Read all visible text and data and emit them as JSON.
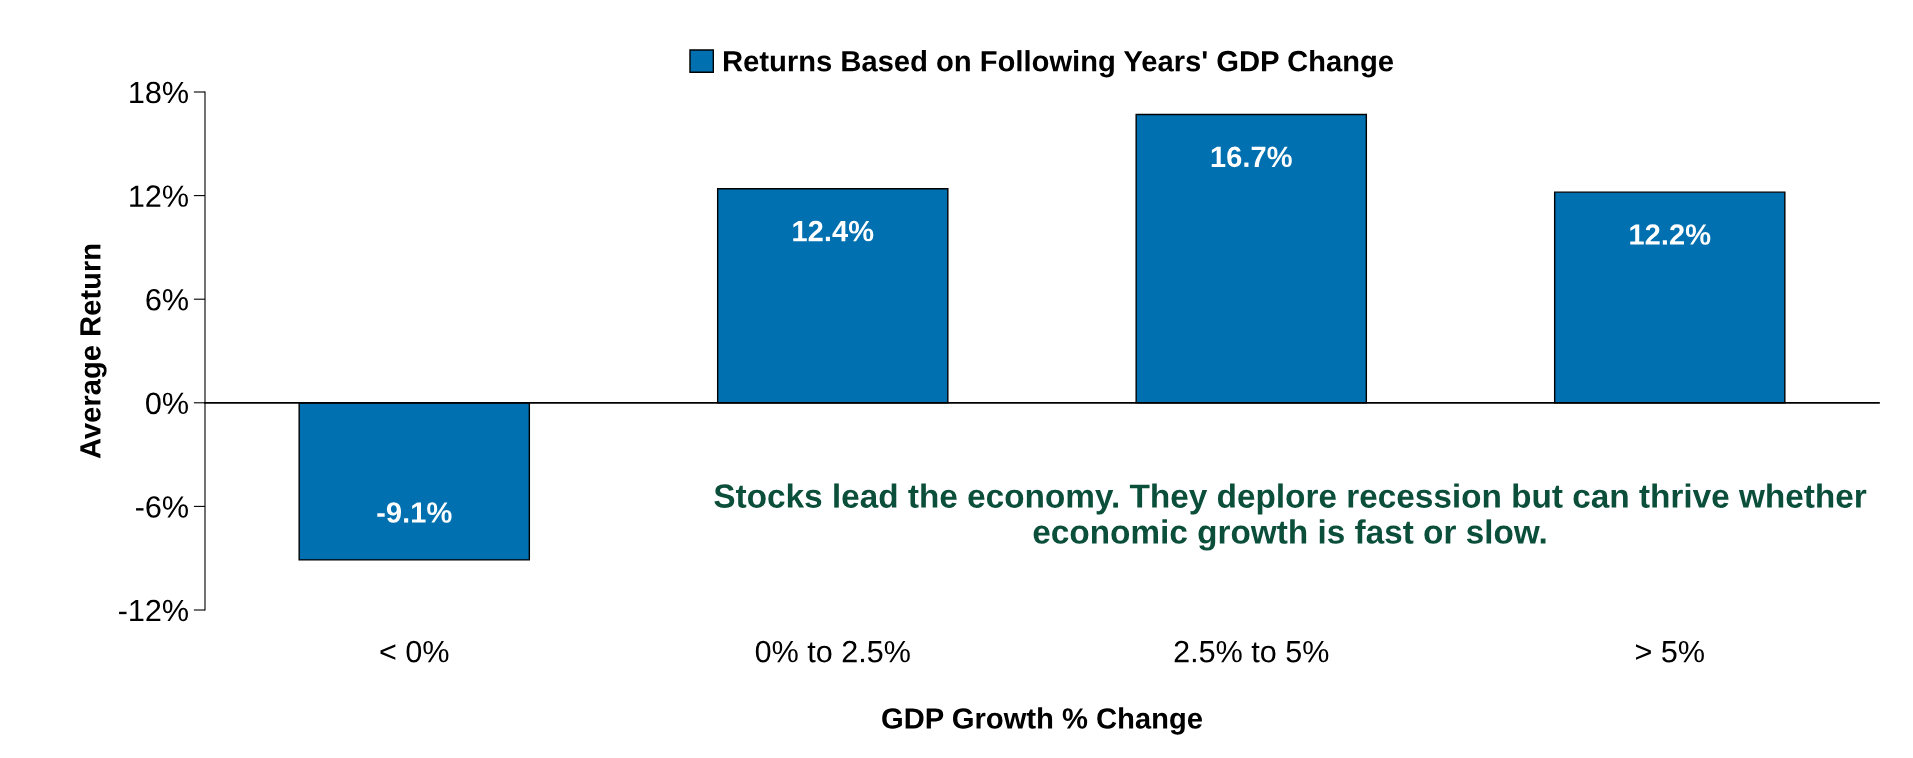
{
  "chart_data": {
    "type": "bar",
    "categories": [
      "< 0%",
      "0% to 2.5%",
      "2.5% to 5%",
      "> 5%"
    ],
    "series": [
      {
        "name": "Returns Based on Following Years' GDP Change",
        "color": "#0070b0",
        "values": [
          -9.1,
          12.4,
          16.7,
          12.2
        ],
        "value_labels": [
          "-9.1%",
          "12.4%",
          "16.7%",
          "12.2%"
        ]
      }
    ],
    "xlabel": "GDP Growth % Change",
    "ylabel": "Average Return",
    "ylim": [
      -12,
      18
    ],
    "yticks": [
      {
        "value": -12,
        "label": "-12%"
      },
      {
        "value": -6,
        "label": "-6%"
      },
      {
        "value": 0,
        "label": "0%"
      },
      {
        "value": 6,
        "label": "6%"
      },
      {
        "value": 12,
        "label": "12%"
      },
      {
        "value": 18,
        "label": "18%"
      }
    ],
    "annotations": [
      "Stocks lead the economy. They deplore recession but can thrive whether economic growth is fast or slow."
    ],
    "legend": "top"
  }
}
